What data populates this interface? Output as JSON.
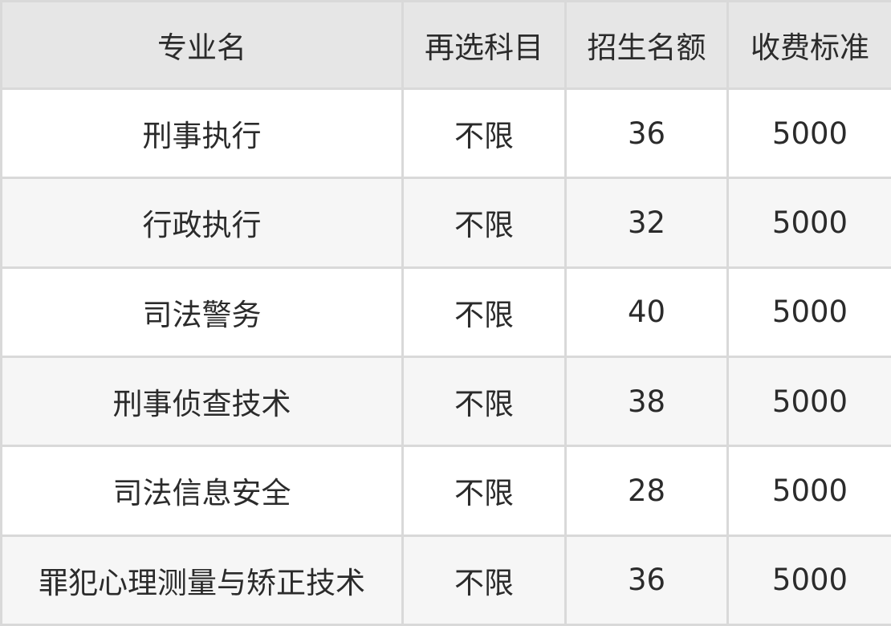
{
  "table": {
    "headers": [
      "专业名",
      "再选科目",
      "招生名额",
      "收费标准"
    ],
    "rows": [
      [
        "刑事执行",
        "不限",
        "36",
        "5000"
      ],
      [
        "行政执行",
        "不限",
        "32",
        "5000"
      ],
      [
        "司法警务",
        "不限",
        "40",
        "5000"
      ],
      [
        "刑事侦查技术",
        "不限",
        "38",
        "5000"
      ],
      [
        "司法信息安全",
        "不限",
        "28",
        "5000"
      ],
      [
        "罪犯心理测量与矫正技术",
        "不限",
        "36",
        "5000"
      ]
    ]
  },
  "colors": {
    "header_bg": "#e6e6e6",
    "alt_row_bg": "#f6f6f6",
    "border": "#d9d9d9",
    "text": "#2b2b2b"
  }
}
